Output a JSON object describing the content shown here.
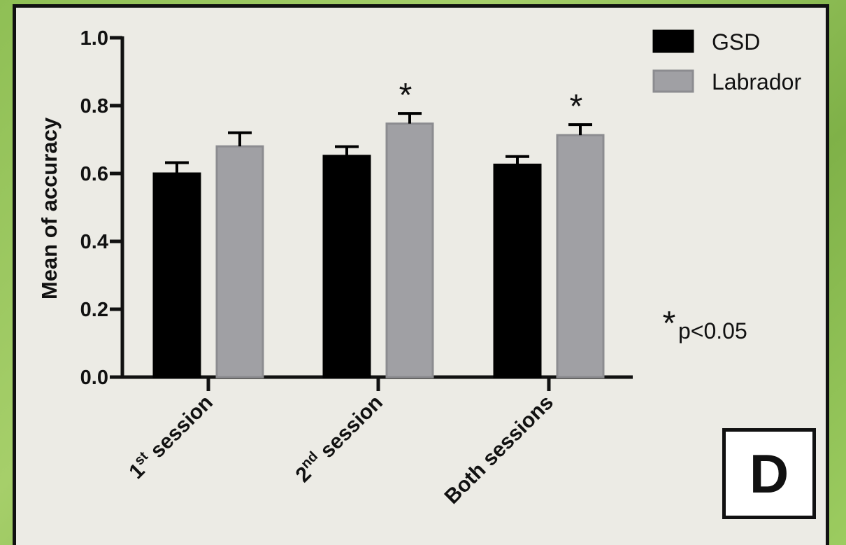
{
  "chart_data": {
    "type": "bar",
    "categories": [
      {
        "base": "1",
        "sup": "st",
        "rest": " session"
      },
      {
        "base": "2",
        "sup": "nd",
        "rest": " session"
      },
      {
        "base": "Both sessions",
        "sup": "",
        "rest": ""
      }
    ],
    "series": [
      {
        "name": "GSD",
        "color": "#000000",
        "values": [
          0.6,
          0.652,
          0.626
        ],
        "errors": [
          0.032,
          0.027,
          0.024
        ]
      },
      {
        "name": "Labrador",
        "color": "#a0a0a4",
        "values": [
          0.68,
          0.747,
          0.713
        ],
        "errors": [
          0.04,
          0.03,
          0.031
        ]
      }
    ],
    "significance": [
      false,
      true,
      true
    ],
    "significance_mark": "*",
    "note": "p<0.05",
    "ylabel": "Mean of accuracy",
    "ylim": [
      0,
      1.0
    ],
    "yticks": [
      "0.0",
      "0.2",
      "0.4",
      "0.6",
      "0.8",
      "1.0"
    ],
    "legend_position": "top-right",
    "panel_label": "D"
  }
}
